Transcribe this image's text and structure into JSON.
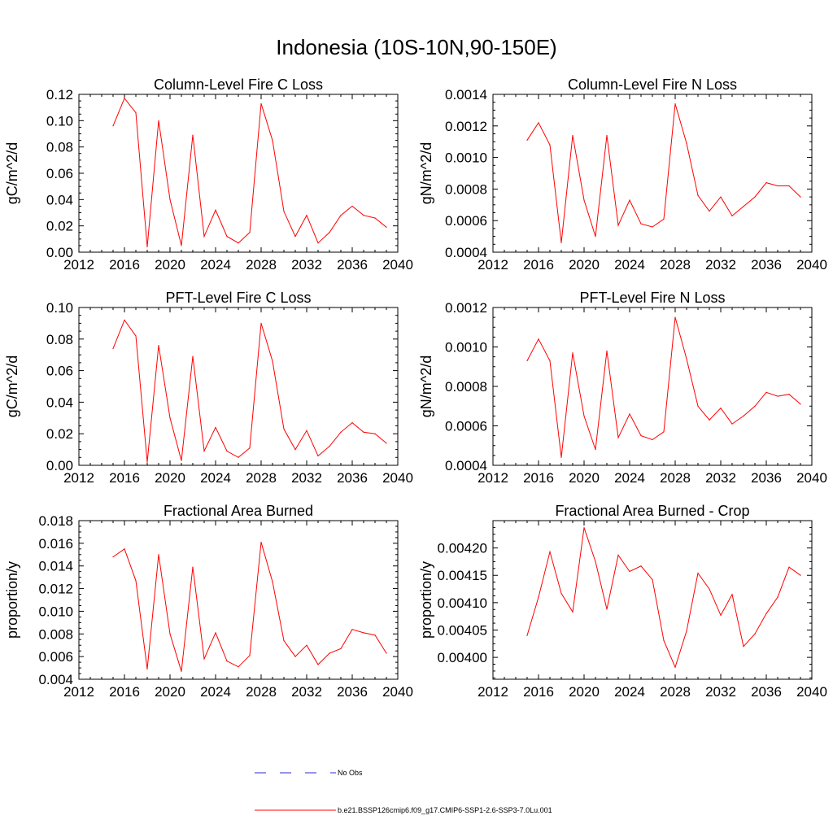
{
  "figure_title": "Indonesia (10S-10N,90-150E)",
  "line_color": "#ff0000",
  "obs_color": "#2b2bd6",
  "legend": {
    "obs_label": "No Obs",
    "model_label": "b.e21.BSSP126cmip6.f09_g17.CMIP6-SSP1-2.6-SSP3-7.0Lu.001"
  },
  "chart_data": [
    {
      "type": "line",
      "title": "Column-Level Fire C Loss",
      "ylabel": "gC/m^2/d",
      "xlim": [
        2012,
        2040
      ],
      "ylim": [
        0,
        0.12
      ],
      "xticks": [
        "2012",
        "2016",
        "2020",
        "2024",
        "2028",
        "2032",
        "2036",
        "2040"
      ],
      "yticks": [
        "0.00",
        "0.02",
        "0.04",
        "0.06",
        "0.08",
        "0.10",
        "0.12"
      ],
      "x": [
        2015,
        2016,
        2017,
        2018,
        2019,
        2020,
        2021,
        2022,
        2023,
        2024,
        2025,
        2026,
        2027,
        2028,
        2029,
        2030,
        2031,
        2032,
        2033,
        2034,
        2035,
        2036,
        2037,
        2038,
        2039
      ],
      "y": [
        0.096,
        0.117,
        0.106,
        0.004,
        0.1,
        0.04,
        0.005,
        0.089,
        0.012,
        0.032,
        0.012,
        0.007,
        0.015,
        0.113,
        0.085,
        0.031,
        0.012,
        0.028,
        0.007,
        0.015,
        0.028,
        0.035,
        0.028,
        0.026,
        0.019
      ]
    },
    {
      "type": "line",
      "title": "Column-Level Fire N Loss",
      "ylabel": "gN/m^2/d",
      "xlim": [
        2012,
        2040
      ],
      "ylim": [
        0.0004,
        0.0014
      ],
      "xticks": [
        "2012",
        "2016",
        "2020",
        "2024",
        "2028",
        "2032",
        "2036",
        "2040"
      ],
      "yticks": [
        "0.0004",
        "0.0006",
        "0.0008",
        "0.0010",
        "0.0012",
        "0.0014"
      ],
      "x": [
        2015,
        2016,
        2017,
        2018,
        2019,
        2020,
        2021,
        2022,
        2023,
        2024,
        2025,
        2026,
        2027,
        2028,
        2029,
        2030,
        2031,
        2032,
        2033,
        2034,
        2035,
        2036,
        2037,
        2038,
        2039
      ],
      "y": [
        0.00111,
        0.00122,
        0.00108,
        0.00046,
        0.00114,
        0.00073,
        0.0005,
        0.00114,
        0.00057,
        0.00073,
        0.00058,
        0.00056,
        0.00061,
        0.00134,
        0.00109,
        0.00076,
        0.00066,
        0.00075,
        0.00063,
        0.00069,
        0.00075,
        0.00084,
        0.00082,
        0.00082,
        0.00075
      ]
    },
    {
      "type": "line",
      "title": "PFT-Level Fire C Loss",
      "ylabel": "gC/m^2/d",
      "xlim": [
        2012,
        2040
      ],
      "ylim": [
        0,
        0.1
      ],
      "xticks": [
        "2012",
        "2016",
        "2020",
        "2024",
        "2028",
        "2032",
        "2036",
        "2040"
      ],
      "yticks": [
        "0.00",
        "0.02",
        "0.04",
        "0.06",
        "0.08",
        "0.10"
      ],
      "x": [
        2015,
        2016,
        2017,
        2018,
        2019,
        2020,
        2021,
        2022,
        2023,
        2024,
        2025,
        2026,
        2027,
        2028,
        2029,
        2030,
        2031,
        2032,
        2033,
        2034,
        2035,
        2036,
        2037,
        2038,
        2039
      ],
      "y": [
        0.074,
        0.092,
        0.082,
        0.002,
        0.076,
        0.03,
        0.003,
        0.069,
        0.009,
        0.024,
        0.009,
        0.005,
        0.011,
        0.09,
        0.066,
        0.023,
        0.01,
        0.022,
        0.006,
        0.012,
        0.021,
        0.027,
        0.021,
        0.02,
        0.014
      ]
    },
    {
      "type": "line",
      "title": "PFT-Level Fire N Loss",
      "ylabel": "gN/m^2/d",
      "xlim": [
        2012,
        2040
      ],
      "ylim": [
        0.0004,
        0.0012
      ],
      "xticks": [
        "2012",
        "2016",
        "2020",
        "2024",
        "2028",
        "2032",
        "2036",
        "2040"
      ],
      "yticks": [
        "0.0004",
        "0.0006",
        "0.0008",
        "0.0010",
        "0.0012"
      ],
      "x": [
        2015,
        2016,
        2017,
        2018,
        2019,
        2020,
        2021,
        2022,
        2023,
        2024,
        2025,
        2026,
        2027,
        2028,
        2029,
        2030,
        2031,
        2032,
        2033,
        2034,
        2035,
        2036,
        2037,
        2038,
        2039
      ],
      "y": [
        0.00093,
        0.00104,
        0.00093,
        0.00044,
        0.00097,
        0.00065,
        0.00048,
        0.00098,
        0.00054,
        0.00066,
        0.00055,
        0.00053,
        0.00057,
        0.00115,
        0.00094,
        0.0007,
        0.00063,
        0.00069,
        0.00061,
        0.00065,
        0.0007,
        0.00077,
        0.00075,
        0.00076,
        0.00071
      ]
    },
    {
      "type": "line",
      "title": "Fractional Area Burned",
      "ylabel": "proportion/y",
      "xlim": [
        2012,
        2040
      ],
      "ylim": [
        0.004,
        0.018
      ],
      "xticks": [
        "2012",
        "2016",
        "2020",
        "2024",
        "2028",
        "2032",
        "2036",
        "2040"
      ],
      "yticks": [
        "0.004",
        "0.006",
        "0.008",
        "0.010",
        "0.012",
        "0.014",
        "0.016",
        "0.018"
      ],
      "x": [
        2015,
        2016,
        2017,
        2018,
        2019,
        2020,
        2021,
        2022,
        2023,
        2024,
        2025,
        2026,
        2027,
        2028,
        2029,
        2030,
        2031,
        2032,
        2033,
        2034,
        2035,
        2036,
        2037,
        2038,
        2039
      ],
      "y": [
        0.0148,
        0.0155,
        0.0127,
        0.0049,
        0.015,
        0.008,
        0.0047,
        0.0139,
        0.0058,
        0.0081,
        0.0056,
        0.0051,
        0.0061,
        0.0161,
        0.0126,
        0.0074,
        0.006,
        0.007,
        0.0053,
        0.0063,
        0.0067,
        0.0084,
        0.0081,
        0.0079,
        0.0063
      ]
    },
    {
      "type": "line",
      "title": "Fractional Area Burned - Crop",
      "ylabel": "proportion/y",
      "xlim": [
        2012,
        2040
      ],
      "ylim": [
        0.00396,
        0.00425
      ],
      "xticks": [
        "2012",
        "2016",
        "2020",
        "2024",
        "2028",
        "2032",
        "2036",
        "2040"
      ],
      "yticks": [
        "0.00400",
        "0.00405",
        "0.00410",
        "0.00415",
        "0.00420"
      ],
      "x": [
        2015,
        2016,
        2017,
        2018,
        2019,
        2020,
        2021,
        2022,
        2023,
        2024,
        2025,
        2026,
        2027,
        2028,
        2029,
        2030,
        2031,
        2032,
        2033,
        2034,
        2035,
        2036,
        2037,
        2038,
        2039
      ],
      "y": [
        0.00404,
        0.00411,
        0.004193,
        0.004117,
        0.004083,
        0.004237,
        0.004175,
        0.004088,
        0.004187,
        0.004157,
        0.004167,
        0.004142,
        0.004031,
        0.003982,
        0.004048,
        0.004154,
        0.004125,
        0.004077,
        0.004115,
        0.00402,
        0.004043,
        0.00408,
        0.00411,
        0.004165,
        0.00415
      ]
    }
  ]
}
